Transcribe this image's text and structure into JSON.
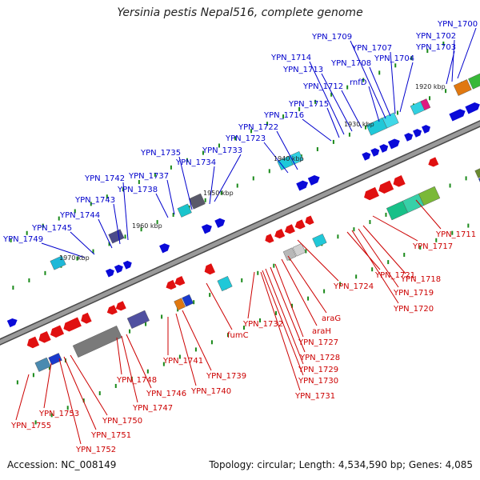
{
  "title": "Yersinia pestis Nepal516, complete genome",
  "footer": {
    "accession": "Accession: NC_008149",
    "summary": "Topology: circular; Length: 4,534,590 bp; Genes: 4,085"
  },
  "colors": {
    "forward_label": "#0000cc",
    "reverse_label": "#cc0000",
    "backbone": "#888888",
    "tick": "#1a8a1a",
    "forward_gene": "#0a0ad8",
    "reverse_gene": "#e01010"
  },
  "kbp_marks": [
    "1920 kbp",
    "1930 kbp",
    "1940 kbp",
    "1950 kbp",
    "1960 kbp",
    "1970 kbp"
  ],
  "forward_labels": [
    "YPN_1700",
    "YPN_1702",
    "YPN_1703",
    "YPN_1704",
    "YPN_1707",
    "YPN_1708",
    "YPN_1709",
    "rnfD",
    "YPN_1712",
    "YPN_1713",
    "YPN_1714",
    "YPN_1715",
    "YPN_1716",
    "YPN_1722",
    "YPN_1723",
    "YPN_1733",
    "YPN_1734",
    "YPN_1735",
    "YPN_1737",
    "YPN_1738",
    "YPN_1742",
    "YPN_1743",
    "YPN_1744",
    "YPN_1745",
    "YPN_1749"
  ],
  "reverse_labels": [
    "YPN_1711",
    "YPN_1717",
    "YPN_1718",
    "YPN_1719",
    "YPN_1720",
    "YPN_1721",
    "YPN_1724",
    "araG",
    "araH",
    "YPN_1727",
    "YPN_1728",
    "YPN_1729",
    "YPN_1730",
    "YPN_1731",
    "YPN_1732",
    "fumC",
    "YPN_1739",
    "YPN_1740",
    "YPN_1741",
    "YPN_1746",
    "YPN_1747",
    "YPN_1748",
    "YPN_1750",
    "YPN_1751",
    "YPN_1752",
    "YPN_1753",
    "YPN_1755"
  ]
}
